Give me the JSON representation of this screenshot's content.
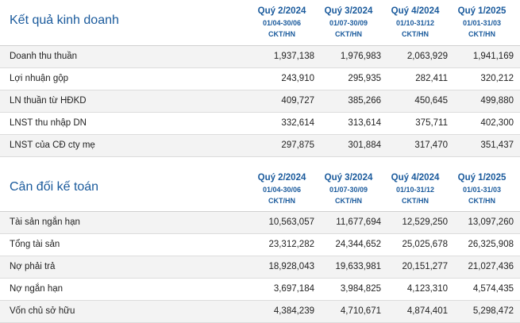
{
  "periods": [
    {
      "quarter": "Quý 2/2024",
      "dates": "01/04-30/06",
      "unit": "CKT/HN"
    },
    {
      "quarter": "Quý 3/2024",
      "dates": "01/07-30/09",
      "unit": "CKT/HN"
    },
    {
      "quarter": "Quý 4/2024",
      "dates": "01/10-31/12",
      "unit": "CKT/HN"
    },
    {
      "quarter": "Quý 1/2025",
      "dates": "01/01-31/03",
      "unit": "CKT/HN"
    }
  ],
  "sections": [
    {
      "title": "Kết quả kinh doanh",
      "rows": [
        {
          "label": "Doanh thu thuần",
          "values": [
            "1,937,138",
            "1,976,983",
            "2,063,929",
            "1,941,169"
          ]
        },
        {
          "label": "Lợi nhuận gộp",
          "values": [
            "243,910",
            "295,935",
            "282,411",
            "320,212"
          ]
        },
        {
          "label": "LN thuần từ HĐKD",
          "values": [
            "409,727",
            "385,266",
            "450,645",
            "499,880"
          ]
        },
        {
          "label": "LNST thu nhập DN",
          "values": [
            "332,614",
            "313,614",
            "375,711",
            "402,300"
          ]
        },
        {
          "label": "LNST của CĐ cty mẹ",
          "values": [
            "297,875",
            "301,884",
            "317,470",
            "351,437"
          ]
        }
      ]
    },
    {
      "title": "Cân đối kế toán",
      "rows": [
        {
          "label": "Tài sản ngắn hạn",
          "values": [
            "10,563,057",
            "11,677,694",
            "12,529,250",
            "13,097,260"
          ]
        },
        {
          "label": "Tổng tài sản",
          "values": [
            "23,312,282",
            "24,344,652",
            "25,025,678",
            "26,325,908"
          ]
        },
        {
          "label": "Nợ phải trả",
          "values": [
            "18,928,043",
            "19,633,981",
            "20,151,277",
            "21,027,436"
          ]
        },
        {
          "label": "Nợ ngắn hạn",
          "values": [
            "3,697,184",
            "3,984,825",
            "4,123,310",
            "4,574,435"
          ]
        },
        {
          "label": "Vốn chủ sở hữu",
          "values": [
            "4,384,239",
            "4,710,671",
            "4,874,401",
            "5,298,472"
          ]
        }
      ]
    }
  ]
}
